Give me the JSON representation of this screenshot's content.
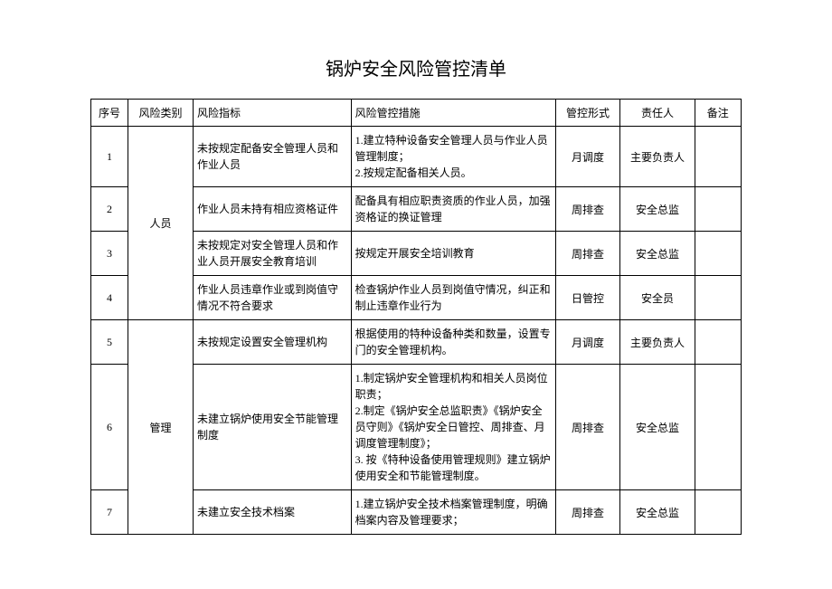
{
  "title": "锅炉安全风险管控清单",
  "headers": {
    "seq": "序号",
    "category": "风险类别",
    "indicator": "风险指标",
    "measure": "风险管控措施",
    "form": "管控形式",
    "person": "责任人",
    "note": "备注"
  },
  "categories": {
    "personnel": "人员",
    "management": "管理"
  },
  "rows": [
    {
      "seq": "1",
      "indicator": "未按规定配备安全管理人员和作业人员",
      "measure": "1.建立特种设备安全管理人员与作业人员管理制度；\n2.按规定配备相关人员。",
      "form": "月调度",
      "person": "主要负责人",
      "note": ""
    },
    {
      "seq": "2",
      "indicator": "作业人员未持有相应资格证件",
      "measure": "配备具有相应职责资质的作业人员，加强资格证的换证管理",
      "form": "周排查",
      "person": "安全总监",
      "note": ""
    },
    {
      "seq": "3",
      "indicator": "未按规定对安全管理人员和作业人员开展安全教育培训",
      "measure": "按规定开展安全培训教育",
      "form": "周排查",
      "person": "安全总监",
      "note": ""
    },
    {
      "seq": "4",
      "indicator": "作业人员违章作业或到岗值守情况不符合要求",
      "measure": "检查锅炉作业人员到岗值守情况，纠正和制止违章作业行为",
      "form": "日管控",
      "person": "安全员",
      "note": ""
    },
    {
      "seq": "5",
      "indicator": "未按规定设置安全管理机构",
      "measure": "根据使用的特种设备种类和数量，设置专门的安全管理机构。",
      "form": "月调度",
      "person": "主要负责人",
      "note": ""
    },
    {
      "seq": "6",
      "indicator": "未建立锅炉使用安全节能管理制度",
      "measure": "1.制定锅炉安全管理机构和相关人员岗位职责；\n2.制定《锅炉安全总监职责》《锅炉安全员守则》《锅炉安全日管控、周排查、月调度管理制度》；\n3. 按《特种设备使用管理规则》建立锅炉使用安全和节能管理制度。",
      "form": "周排查",
      "person": "安全总监",
      "note": ""
    },
    {
      "seq": "7",
      "indicator": "未建立安全技术档案",
      "measure": "1.建立锅炉安全技术档案管理制度，明确档案内容及管理要求；",
      "form": "周排查",
      "person": "安全总监",
      "note": ""
    }
  ],
  "styling": {
    "background_color": "#ffffff",
    "text_color": "#000000",
    "border_color": "#000000",
    "title_fontsize": 20,
    "cell_fontsize": 12,
    "font_family": "SimSun",
    "col_widths": {
      "seq": 40,
      "category": 70,
      "indicator": 170,
      "measure": 220,
      "form": 70,
      "person": 80,
      "note": 50
    }
  }
}
